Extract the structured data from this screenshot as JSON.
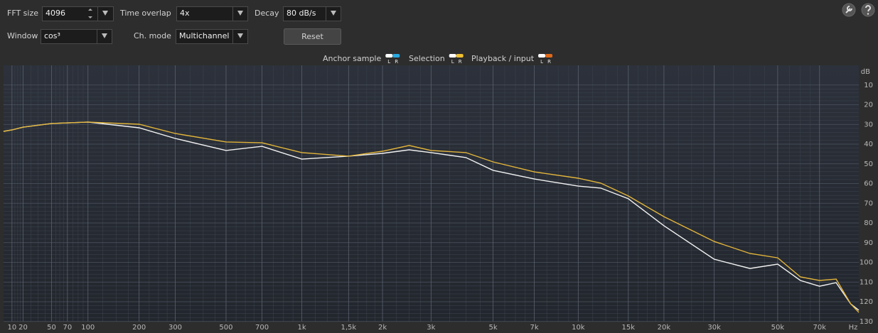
{
  "controls": [
    {
      "label": "FFT size",
      "value": "4096"
    },
    {
      "label": "Time overlap",
      "value": "4x"
    },
    {
      "label": "Decay",
      "value": "80 dB/s"
    },
    {
      "label": "Window",
      "value": "cos³"
    },
    {
      "label": "Ch. mode",
      "value": "Multichannel"
    }
  ],
  "button": "Reset",
  "legend": {
    "channels": [
      "L",
      "R"
    ],
    "items": [
      {
        "label": "Anchor sample",
        "colors": [
          "#ffffff",
          "#29a8e0"
        ]
      },
      {
        "label": "Selection",
        "colors": [
          "#ffffff",
          "#f0c030"
        ]
      },
      {
        "label": "Playback / input",
        "colors": [
          "#ffffff",
          "#e06a1a"
        ]
      }
    ]
  },
  "chart_data": {
    "type": "line",
    "x_label": "Hz",
    "y_label": "dB",
    "x": [
      3,
      10,
      20,
      50,
      100,
      200,
      300,
      500,
      700,
      1000,
      1500,
      2000,
      2500,
      3000,
      4000,
      5000,
      7000,
      10000,
      12000,
      15000,
      20000,
      30000,
      40000,
      50000,
      60000,
      70000,
      80000,
      90000,
      96000
    ],
    "series": [
      {
        "color": "#f2f2f2",
        "values": [
          33.5,
          32.8,
          31.4,
          29.5,
          28.8,
          31.7,
          37.1,
          43.2,
          41.1,
          47.6,
          46.1,
          44.7,
          42.9,
          44.3,
          46.8,
          53.3,
          57.7,
          61.3,
          62.3,
          67.7,
          81.4,
          98.4,
          103.1,
          100.9,
          109.2,
          112.1,
          110.3,
          121.1,
          124.3
        ]
      },
      {
        "color": "#e3b53a",
        "values": [
          33.5,
          32.8,
          31.4,
          29.5,
          28.8,
          29.9,
          34.6,
          38.9,
          39.3,
          44.3,
          46.1,
          43.6,
          40.7,
          43.2,
          44.3,
          49.0,
          54.1,
          57.3,
          59.8,
          66.3,
          76.8,
          89.4,
          95.5,
          97.7,
          107.4,
          109.2,
          108.5,
          121.1,
          125.4
        ]
      }
    ],
    "xlim": [
      3,
      96000
    ],
    "ylim": [
      130,
      0
    ],
    "xticks": [
      10,
      20,
      50,
      70,
      100,
      200,
      300,
      500,
      700,
      {
        "value": 1000,
        "label": "1k"
      },
      {
        "value": 1500,
        "label": "1,5k"
      },
      {
        "value": 2000,
        "label": "2k"
      },
      {
        "value": 3000,
        "label": "3k"
      },
      {
        "value": 5000,
        "label": "5k"
      },
      {
        "value": 7000,
        "label": "7k"
      },
      {
        "value": 10000,
        "label": "10k"
      },
      {
        "value": 15000,
        "label": "15k"
      },
      {
        "value": 20000,
        "label": "20k"
      },
      {
        "value": 30000,
        "label": "30k"
      },
      {
        "value": 50000,
        "label": "50k"
      },
      {
        "value": 70000,
        "label": "70k"
      }
    ],
    "yticks": [
      10,
      20,
      30,
      40,
      50,
      60,
      70,
      80,
      90,
      100,
      110,
      120,
      130
    ],
    "grid": true
  }
}
